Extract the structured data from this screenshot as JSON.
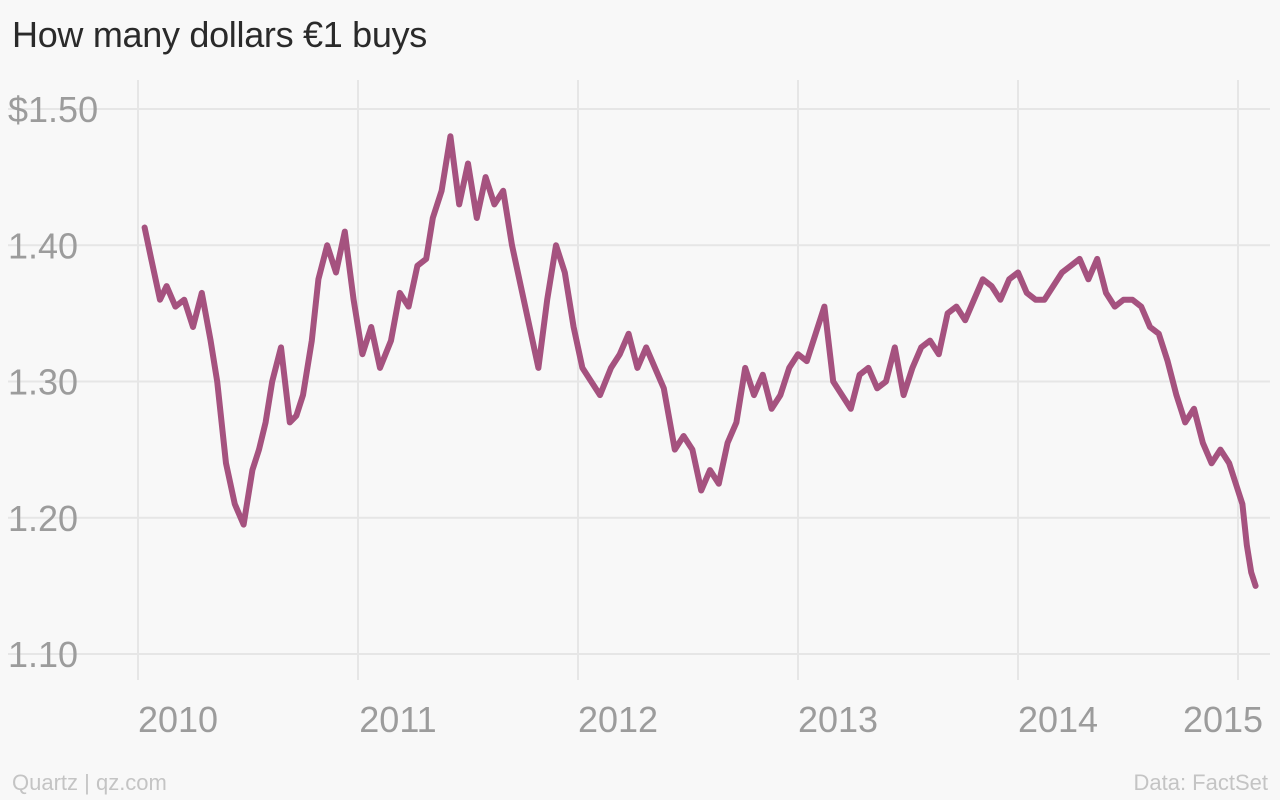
{
  "chart_data": {
    "type": "line",
    "title": "How many dollars €1 buys",
    "xlabel": "",
    "ylabel": "",
    "xlim": [
      2010.0,
      2015.1
    ],
    "ylim": [
      1.1,
      1.5
    ],
    "x_ticks": [
      2010,
      2011,
      2012,
      2013,
      2014,
      2015
    ],
    "x_tick_labels": [
      "2010",
      "2011",
      "2012",
      "2013",
      "2014",
      "2015"
    ],
    "y_ticks": [
      1.1,
      1.2,
      1.3,
      1.4,
      1.5
    ],
    "y_tick_labels": [
      "1.10",
      "1.20",
      "1.30",
      "1.40",
      "$1.50"
    ],
    "grid": true,
    "series": [
      {
        "color": "#a5527f",
        "x": [
          2010.03,
          2010.06,
          2010.1,
          2010.13,
          2010.17,
          2010.21,
          2010.25,
          2010.29,
          2010.33,
          2010.36,
          2010.4,
          2010.44,
          2010.48,
          2010.52,
          2010.55,
          2010.58,
          2010.61,
          2010.65,
          2010.69,
          2010.72,
          2010.75,
          2010.79,
          2010.82,
          2010.86,
          2010.9,
          2010.94,
          2010.98,
          2011.02,
          2011.06,
          2011.1,
          2011.15,
          2011.19,
          2011.23,
          2011.27,
          2011.31,
          2011.34,
          2011.38,
          2011.42,
          2011.46,
          2011.5,
          2011.54,
          2011.58,
          2011.62,
          2011.66,
          2011.7,
          2011.74,
          2011.78,
          2011.82,
          2011.86,
          2011.9,
          2011.94,
          2011.98,
          2012.02,
          2012.06,
          2012.1,
          2012.15,
          2012.19,
          2012.23,
          2012.27,
          2012.31,
          2012.35,
          2012.39,
          2012.44,
          2012.48,
          2012.52,
          2012.56,
          2012.6,
          2012.64,
          2012.68,
          2012.72,
          2012.76,
          2012.8,
          2012.84,
          2012.88,
          2012.92,
          2012.96,
          2013.0,
          2013.04,
          2013.08,
          2013.12,
          2013.16,
          2013.2,
          2013.24,
          2013.28,
          2013.32,
          2013.36,
          2013.4,
          2013.44,
          2013.48,
          2013.52,
          2013.56,
          2013.6,
          2013.64,
          2013.68,
          2013.72,
          2013.76,
          2013.8,
          2013.84,
          2013.88,
          2013.92,
          2013.96,
          2014.0,
          2014.04,
          2014.08,
          2014.12,
          2014.16,
          2014.2,
          2014.24,
          2014.28,
          2014.32,
          2014.36,
          2014.4,
          2014.44,
          2014.48,
          2014.52,
          2014.56,
          2014.6,
          2014.64,
          2014.68,
          2014.72,
          2014.76,
          2014.8,
          2014.84,
          2014.88,
          2014.92,
          2014.96,
          2015.0,
          2015.02,
          2015.04,
          2015.06,
          2015.08
        ],
        "y": [
          1.413,
          1.39,
          1.36,
          1.37,
          1.355,
          1.36,
          1.34,
          1.365,
          1.33,
          1.3,
          1.24,
          1.21,
          1.195,
          1.235,
          1.25,
          1.27,
          1.3,
          1.325,
          1.27,
          1.275,
          1.29,
          1.33,
          1.375,
          1.4,
          1.38,
          1.41,
          1.36,
          1.32,
          1.34,
          1.31,
          1.33,
          1.365,
          1.355,
          1.385,
          1.39,
          1.42,
          1.44,
          1.48,
          1.43,
          1.46,
          1.42,
          1.45,
          1.43,
          1.44,
          1.4,
          1.37,
          1.34,
          1.31,
          1.36,
          1.4,
          1.38,
          1.34,
          1.31,
          1.3,
          1.29,
          1.31,
          1.32,
          1.335,
          1.31,
          1.325,
          1.31,
          1.295,
          1.25,
          1.26,
          1.25,
          1.22,
          1.235,
          1.225,
          1.255,
          1.27,
          1.31,
          1.29,
          1.305,
          1.28,
          1.29,
          1.31,
          1.32,
          1.315,
          1.335,
          1.355,
          1.3,
          1.29,
          1.28,
          1.305,
          1.31,
          1.295,
          1.3,
          1.325,
          1.29,
          1.31,
          1.325,
          1.33,
          1.32,
          1.35,
          1.355,
          1.345,
          1.36,
          1.375,
          1.37,
          1.36,
          1.375,
          1.38,
          1.365,
          1.36,
          1.36,
          1.37,
          1.38,
          1.385,
          1.39,
          1.375,
          1.39,
          1.365,
          1.355,
          1.36,
          1.36,
          1.355,
          1.34,
          1.335,
          1.315,
          1.29,
          1.27,
          1.28,
          1.255,
          1.24,
          1.25,
          1.24,
          1.22,
          1.21,
          1.18,
          1.16,
          1.15
        ]
      }
    ]
  },
  "footer": {
    "source_left": "Quartz | qz.com",
    "source_right": "Data: FactSet"
  }
}
